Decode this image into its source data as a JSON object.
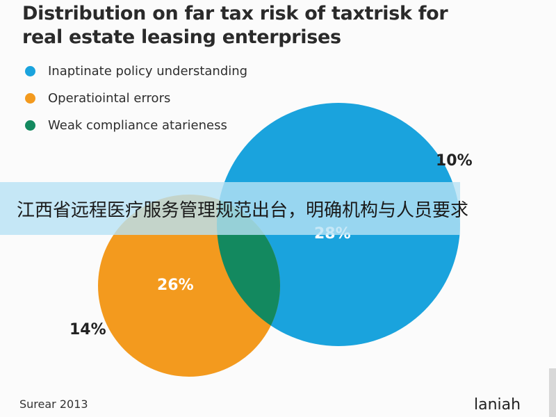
{
  "chart_data": {
    "type": "venn",
    "title": "Distribution on far tax risk of taxtrisk for real estate leasing enterprises",
    "title_lines": [
      "Distribution on far tax risk of taxtrisk for",
      "real estate leasing enterprises"
    ],
    "legend_position": "top-left",
    "series": [
      {
        "name": "Inaptinate policy understanding",
        "color": "#1aa3dd"
      },
      {
        "name": "Operatiointal errors",
        "color": "#f39a1e"
      },
      {
        "name": "Weak compliance atarieness",
        "color": "#13895f"
      }
    ],
    "labels": {
      "blue_outer": "10%",
      "blue_inner": "28%",
      "orange_inner": "26%",
      "orange_outer": "14%"
    },
    "source": "Surear 2013",
    "brand": "laniah"
  },
  "overlay": {
    "banner_text": "江西省远程医疗服务管理规范出台，明确机构与人员要求"
  }
}
